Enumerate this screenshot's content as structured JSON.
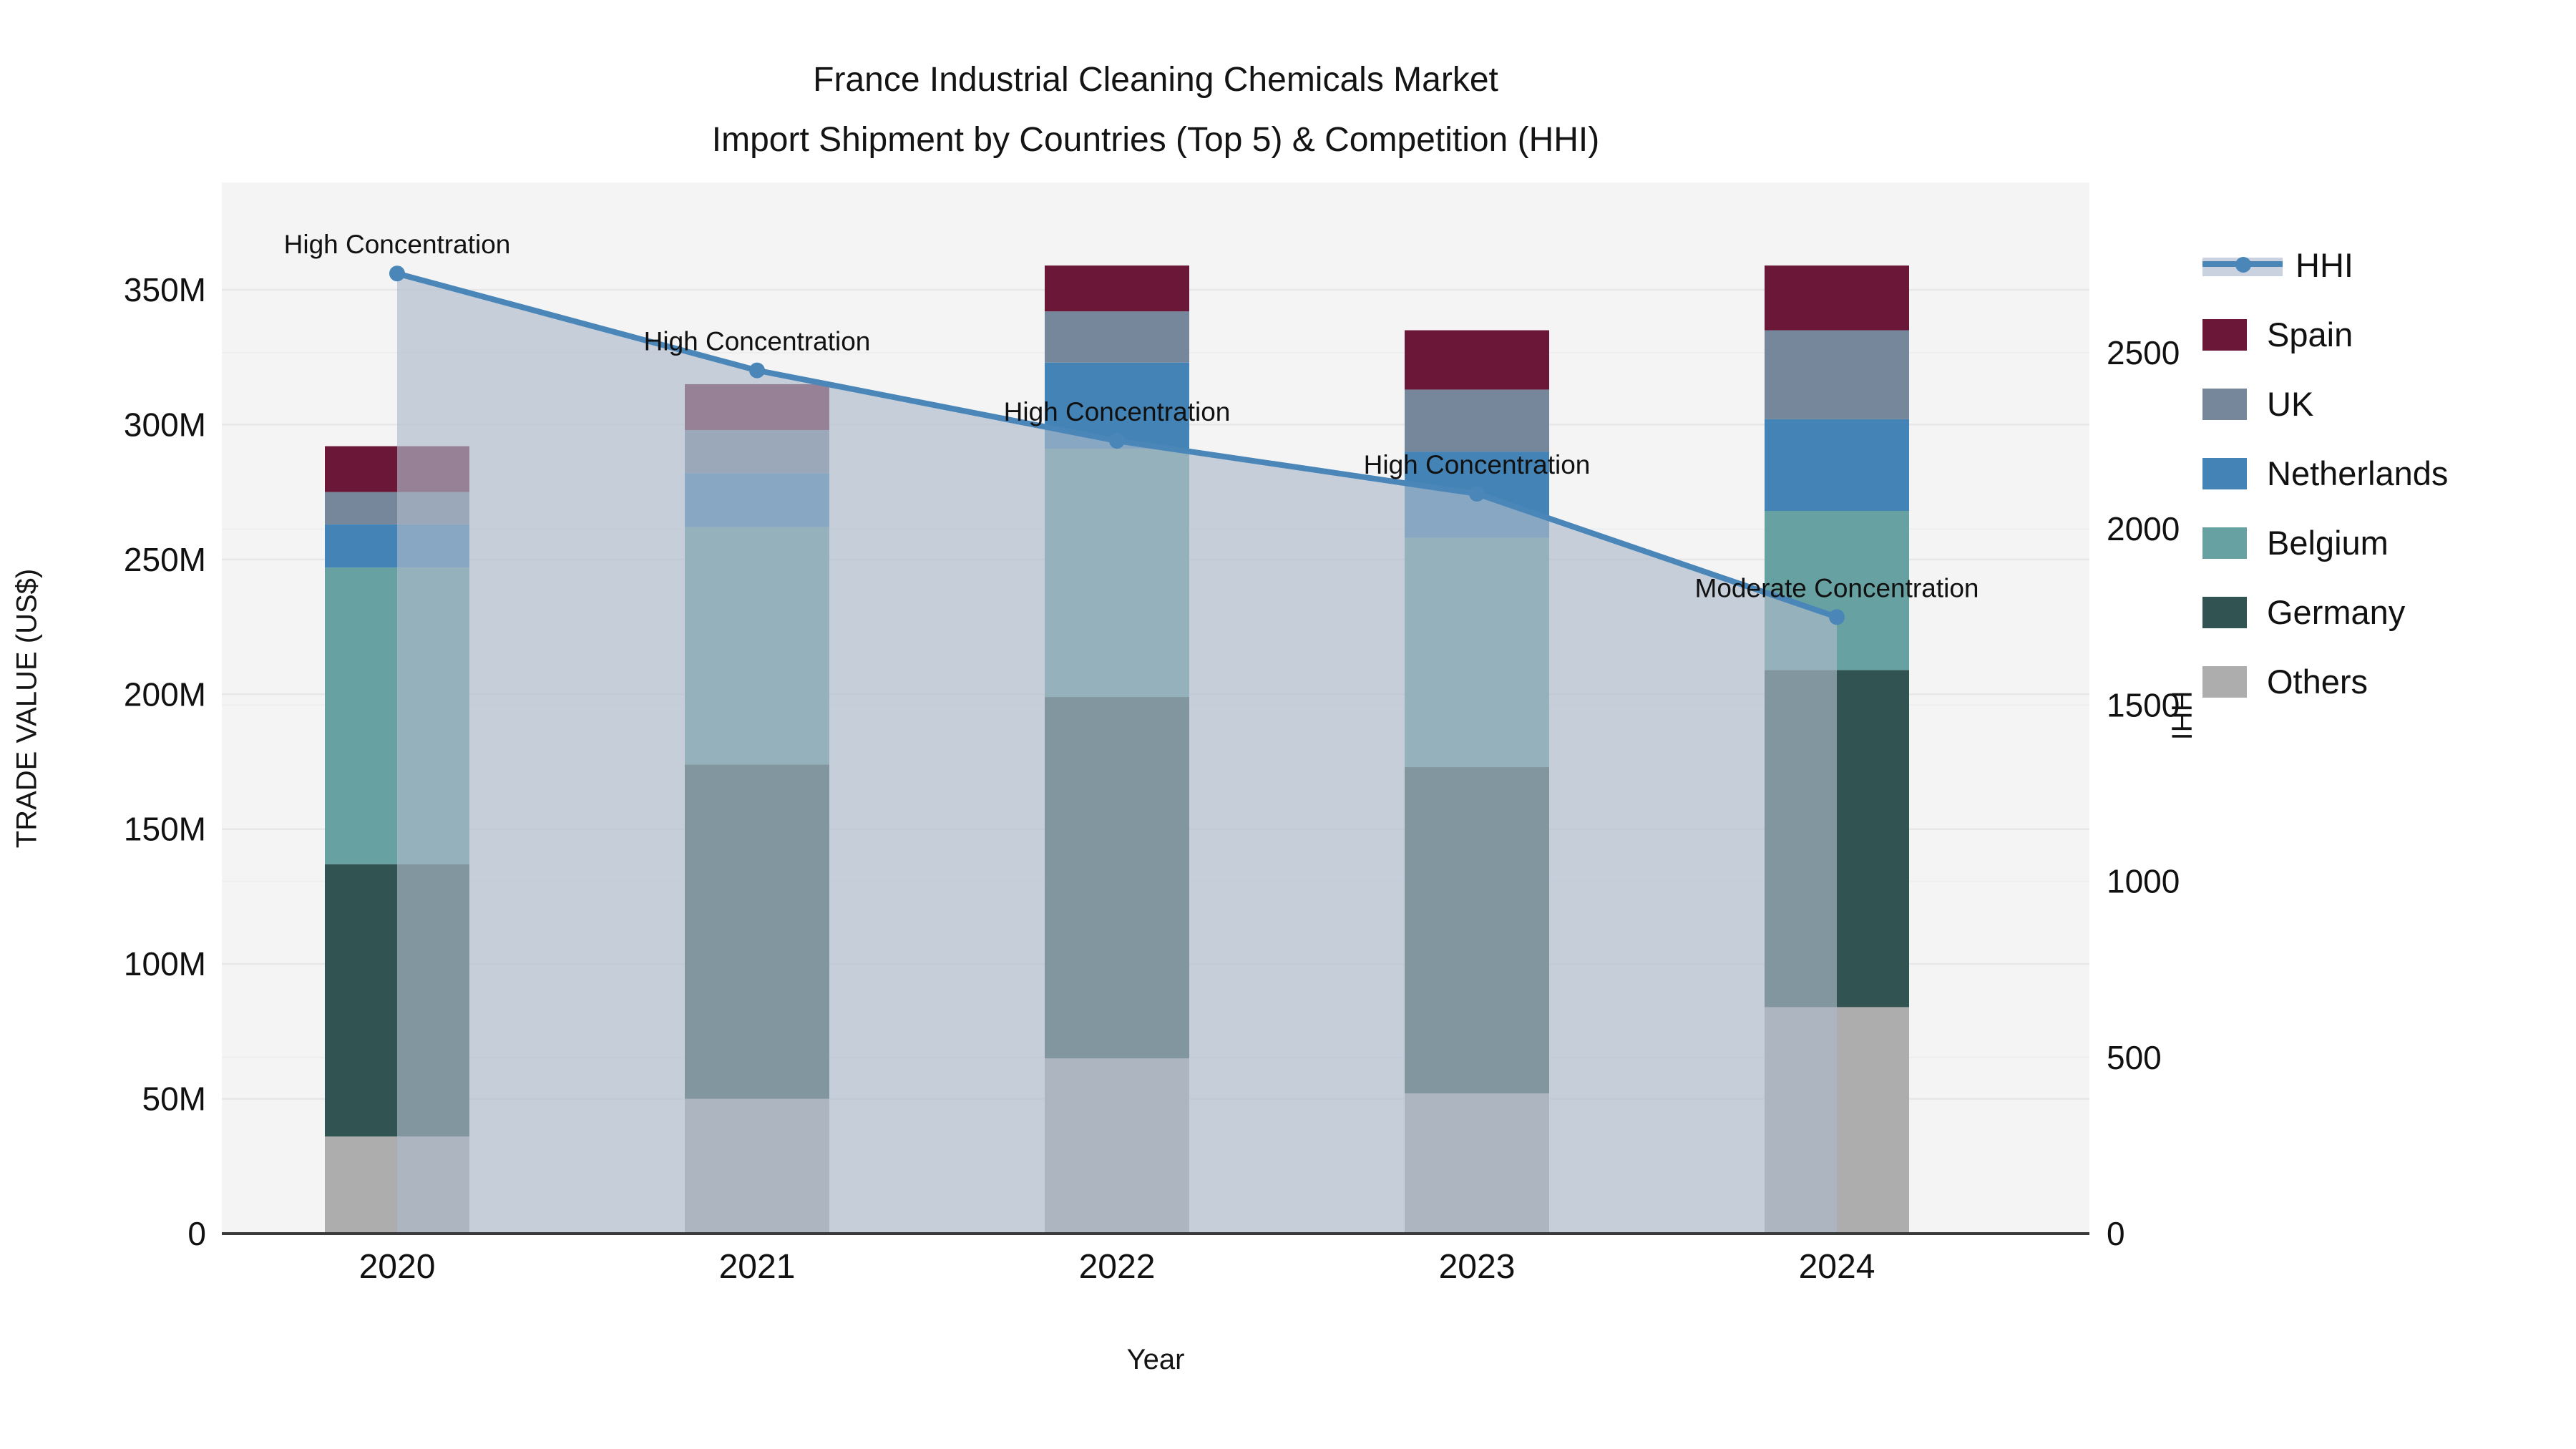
{
  "title": {
    "line1": "France Industrial Cleaning Chemicals Market",
    "line2": "Import Shipment by Countries (Top 5) & Competition (HHI)"
  },
  "axes": {
    "left_label": "TRADE VALUE (US$)",
    "right_label": "HHI",
    "x_label": "Year",
    "left_ticks": [
      0,
      50,
      100,
      150,
      200,
      250,
      300,
      350
    ],
    "left_tick_labels": [
      "0",
      "50M",
      "100M",
      "150M",
      "200M",
      "250M",
      "300M",
      "350M"
    ],
    "right_ticks": [
      0,
      500,
      1000,
      1500,
      2000,
      2500
    ],
    "right_tick_labels": [
      "0",
      "500",
      "1000",
      "1500",
      "2000",
      "2500"
    ],
    "x_tick_labels": [
      "2020",
      "2021",
      "2022",
      "2023",
      "2024"
    ]
  },
  "legend": {
    "items": [
      {
        "id": "hhi",
        "label": "HHI",
        "type": "line"
      },
      {
        "id": "spain",
        "label": "Spain",
        "type": "swatch"
      },
      {
        "id": "uk",
        "label": "UK",
        "type": "swatch"
      },
      {
        "id": "netherlands",
        "label": "Netherlands",
        "type": "swatch"
      },
      {
        "id": "belgium",
        "label": "Belgium",
        "type": "swatch"
      },
      {
        "id": "germany",
        "label": "Germany",
        "type": "swatch"
      },
      {
        "id": "others",
        "label": "Others",
        "type": "swatch"
      }
    ]
  },
  "colors": {
    "spain": "#6b1737",
    "uk": "#76879b",
    "netherlands": "#4483b5",
    "belgium": "#67a1a1",
    "germany": "#315452",
    "others": "#adadad",
    "hhi_line": "#4a86b8",
    "hhi_area": "rgba(173,186,203,0.65)",
    "legend_band": "#c9d2de",
    "plot_bg": "#f4f4f5",
    "grid_left": "#e7e7e9",
    "grid_right": "#eceef0",
    "axis_line": "#3a3a3a",
    "text": "#111111"
  },
  "chart_data": {
    "type": "bar",
    "stacked": true,
    "title": "France Industrial Cleaning Chemicals Market — Import Shipment by Countries (Top 5) & Competition (HHI)",
    "xlabel": "Year",
    "ylabel": "TRADE VALUE (US$)",
    "ylabel_right": "HHI",
    "categories": [
      "2020",
      "2021",
      "2022",
      "2023",
      "2024"
    ],
    "unit": "US$ millions",
    "ylim_left": [
      0,
      390
    ],
    "ylim_right": [
      0,
      2985
    ],
    "grid": true,
    "legend_position": "right",
    "series": [
      {
        "name": "Others",
        "color_id": "others",
        "values": [
          36,
          50,
          65,
          52,
          84
        ]
      },
      {
        "name": "Germany",
        "color_id": "germany",
        "values": [
          101,
          124,
          134,
          121,
          125
        ]
      },
      {
        "name": "Belgium",
        "color_id": "belgium",
        "values": [
          110,
          88,
          92,
          85,
          59
        ]
      },
      {
        "name": "Netherlands",
        "color_id": "netherlands",
        "values": [
          16,
          20,
          32,
          32,
          34
        ]
      },
      {
        "name": "UK",
        "color_id": "uk",
        "values": [
          12,
          16,
          19,
          23,
          33
        ]
      },
      {
        "name": "Spain",
        "color_id": "spain",
        "values": [
          17,
          17,
          17,
          22,
          24
        ]
      }
    ],
    "stack_totals": [
      292,
      315,
      359,
      335,
      359
    ],
    "line_series": {
      "name": "HHI",
      "axis": "right",
      "style": "line-with-markers-and-area-fill",
      "values": [
        2725,
        2450,
        2250,
        2100,
        1750
      ]
    },
    "annotations": [
      {
        "text": "High Concentration",
        "category": "2020"
      },
      {
        "text": "High Concentration",
        "category": "2021"
      },
      {
        "text": "High Concentration",
        "category": "2022"
      },
      {
        "text": "High Concentration",
        "category": "2023"
      },
      {
        "text": "Moderate Concentration",
        "category": "2024"
      }
    ]
  }
}
